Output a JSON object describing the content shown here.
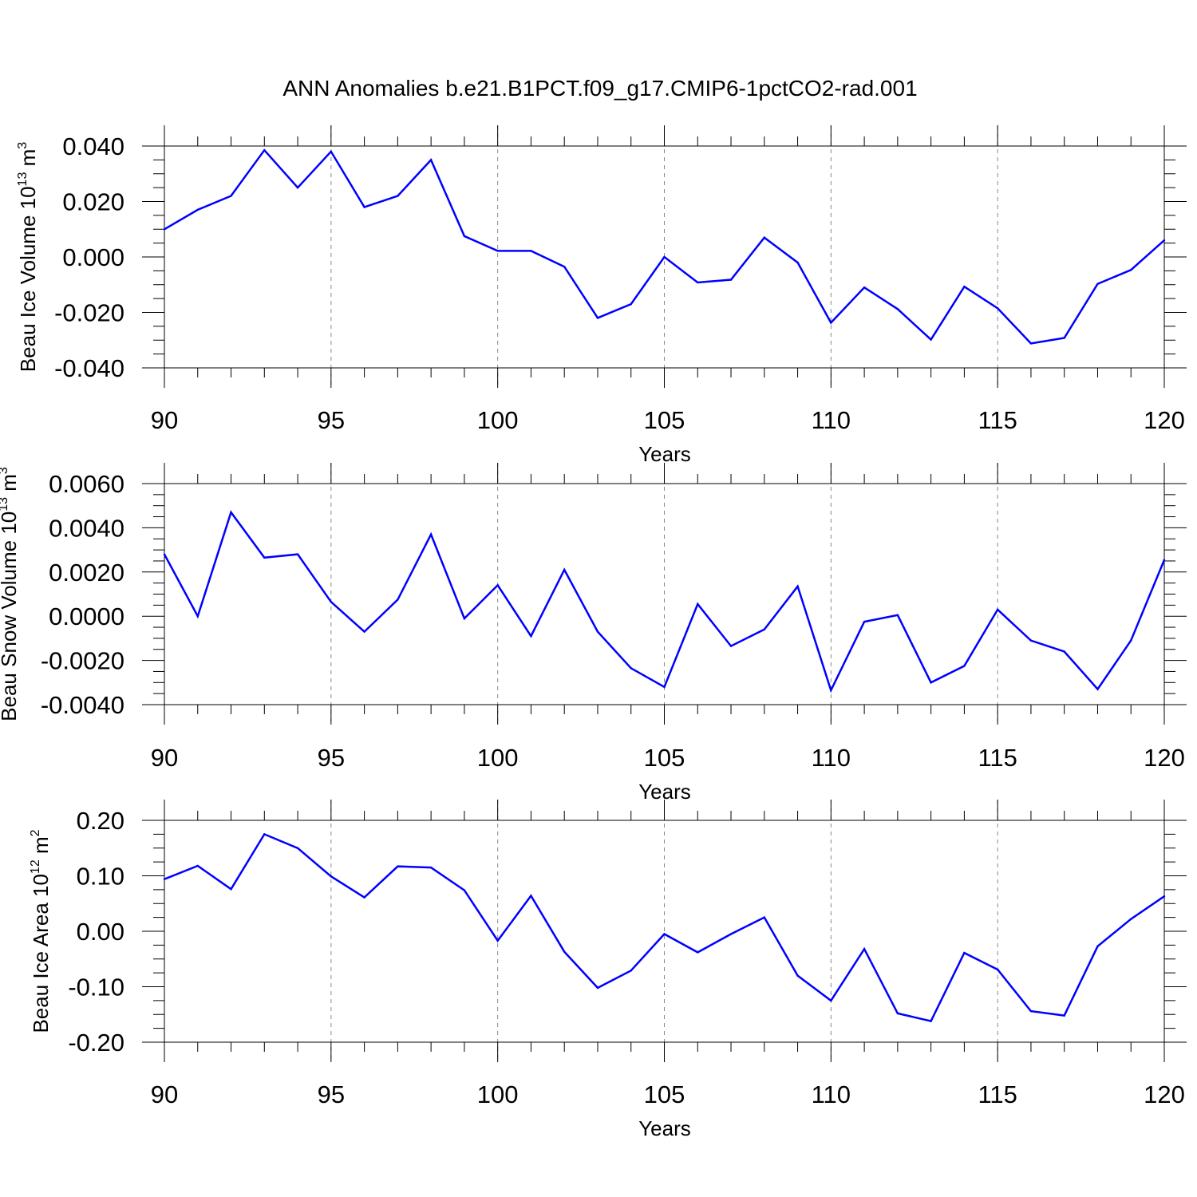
{
  "title": "ANN Anomalies b.e21.B1PCT.f09_g17.CMIP6-1pctCO2-rad.001",
  "colors": {
    "line": "#0000ff",
    "axis": "#000000",
    "grid": "#888888"
  },
  "chart_data": [
    {
      "type": "line",
      "ylabel": {
        "text": "Beau Ice Volume 10",
        "exp": "13",
        "unit": "m",
        "unit_exp": "3"
      },
      "xlabel": "Years",
      "xlim": [
        90,
        120
      ],
      "ylim": [
        -0.04,
        0.04
      ],
      "grid": "x-dashed",
      "xticks": [
        90,
        95,
        100,
        105,
        110,
        115,
        120
      ],
      "xtick_labels": [
        "90",
        "95",
        "100",
        "105",
        "110",
        "115",
        "120"
      ],
      "yticks": [
        -0.04,
        -0.02,
        0.0,
        0.02,
        0.04
      ],
      "ytick_labels": [
        "-0.040",
        "-0.020",
        "0.000",
        "0.020",
        "0.040"
      ],
      "ytick_minor_step": 0.005,
      "x": [
        90,
        91,
        92,
        93,
        94,
        95,
        96,
        97,
        98,
        99,
        100,
        101,
        102,
        103,
        104,
        105,
        106,
        107,
        108,
        109,
        110,
        111,
        112,
        113,
        114,
        115,
        116,
        117,
        118,
        119,
        120
      ],
      "values": [
        0.01,
        0.017,
        0.022,
        0.0385,
        0.025,
        0.038,
        0.018,
        0.022,
        0.035,
        0.0075,
        0.0022,
        0.0022,
        -0.0035,
        -0.022,
        -0.017,
        0.0,
        -0.0092,
        -0.0082,
        0.007,
        -0.002,
        -0.0237,
        -0.011,
        -0.0188,
        -0.0298,
        -0.0107,
        -0.0185,
        -0.0312,
        -0.0292,
        -0.0097,
        -0.0047,
        0.006
      ]
    },
    {
      "type": "line",
      "ylabel": {
        "text": "Beau Snow Volume 10",
        "exp": "13",
        "unit": "m",
        "unit_exp": "3"
      },
      "xlabel": "Years",
      "xlim": [
        90,
        120
      ],
      "ylim": [
        -0.004,
        0.006
      ],
      "grid": "x-dashed",
      "xticks": [
        90,
        95,
        100,
        105,
        110,
        115,
        120
      ],
      "xtick_labels": [
        "90",
        "95",
        "100",
        "105",
        "110",
        "115",
        "120"
      ],
      "yticks": [
        -0.004,
        -0.002,
        0.0,
        0.002,
        0.004,
        0.006
      ],
      "ytick_labels": [
        "-0.0040",
        "-0.0020",
        "0.0000",
        "0.0020",
        "0.0040",
        "0.0060"
      ],
      "ytick_minor_step": 0.0005,
      "x": [
        90,
        91,
        92,
        93,
        94,
        95,
        96,
        97,
        98,
        99,
        100,
        101,
        102,
        103,
        104,
        105,
        106,
        107,
        108,
        109,
        110,
        111,
        112,
        113,
        114,
        115,
        116,
        117,
        118,
        119,
        120
      ],
      "values": [
        0.0028,
        0.0,
        0.0047,
        0.00265,
        0.0028,
        0.00065,
        -0.0007,
        0.00075,
        0.0037,
        -0.0001,
        0.0014,
        -0.0009,
        0.0021,
        -0.0007,
        -0.00235,
        -0.0032,
        0.00055,
        -0.00135,
        -0.0006,
        0.00135,
        -0.00335,
        -0.00025,
        5e-05,
        -0.003,
        -0.00225,
        0.0003,
        -0.0011,
        -0.0016,
        -0.0033,
        -0.0011,
        0.00255
      ]
    },
    {
      "type": "line",
      "ylabel": {
        "text": "Beau Ice Area 10",
        "exp": "12",
        "unit": "m",
        "unit_exp": "2"
      },
      "xlabel": "Years",
      "xlim": [
        90,
        120
      ],
      "ylim": [
        -0.2,
        0.2
      ],
      "grid": "x-dashed",
      "xticks": [
        90,
        95,
        100,
        105,
        110,
        115,
        120
      ],
      "xtick_labels": [
        "90",
        "95",
        "100",
        "105",
        "110",
        "115",
        "120"
      ],
      "yticks": [
        -0.2,
        -0.1,
        0.0,
        0.1,
        0.2
      ],
      "ytick_labels": [
        "-0.20",
        "-0.10",
        "0.00",
        "0.10",
        "0.20"
      ],
      "ytick_minor_step": 0.025,
      "x": [
        90,
        91,
        92,
        93,
        94,
        95,
        96,
        97,
        98,
        99,
        100,
        101,
        102,
        103,
        104,
        105,
        106,
        107,
        108,
        109,
        110,
        111,
        112,
        113,
        114,
        115,
        116,
        117,
        118,
        119,
        120
      ],
      "values": [
        0.094,
        0.118,
        0.076,
        0.175,
        0.15,
        0.099,
        0.061,
        0.117,
        0.115,
        0.074,
        -0.017,
        0.064,
        -0.037,
        -0.102,
        -0.071,
        -0.005,
        -0.038,
        -0.005,
        0.025,
        -0.08,
        -0.125,
        -0.032,
        -0.148,
        -0.162,
        -0.039,
        -0.069,
        -0.144,
        -0.152,
        -0.027,
        0.022,
        0.063
      ]
    }
  ]
}
